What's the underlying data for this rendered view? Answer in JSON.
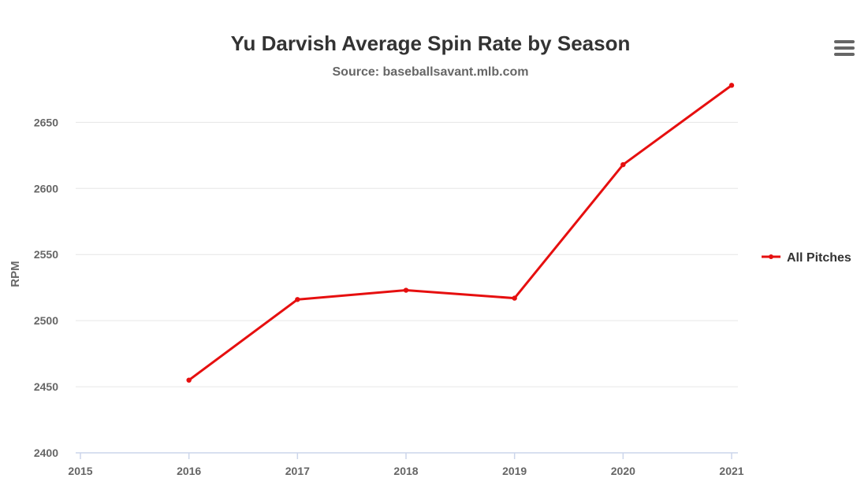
{
  "chart_data": {
    "type": "line",
    "title": "Yu Darvish Average Spin Rate by Season",
    "subtitle": "Source: baseballsavant.mlb.com",
    "xlabel": "",
    "ylabel": "RPM",
    "x": [
      2015,
      2016,
      2017,
      2018,
      2019,
      2020,
      2021
    ],
    "x_tick_labels": [
      "2015",
      "2016",
      "2017",
      "2018",
      "2019",
      "2020",
      "2021"
    ],
    "xlim": [
      2015,
      2021
    ],
    "ylim": [
      2400,
      2680
    ],
    "y_ticks": [
      2400,
      2450,
      2500,
      2550,
      2600,
      2650
    ],
    "y_tick_labels": [
      "2400",
      "2450",
      "2500",
      "2550",
      "2600",
      "2650"
    ],
    "grid": true,
    "legend_position": "right",
    "series": [
      {
        "name": "All Pitches",
        "color": "#e60f0f",
        "points": [
          {
            "x": 2016,
            "y": 2455
          },
          {
            "x": 2017,
            "y": 2516
          },
          {
            "x": 2018,
            "y": 2523
          },
          {
            "x": 2019,
            "y": 2517
          },
          {
            "x": 2020,
            "y": 2618
          },
          {
            "x": 2021,
            "y": 2678
          }
        ]
      }
    ]
  },
  "menu": {
    "icon": "hamburger-menu-icon"
  },
  "colors": {
    "grid": "#e6e6e6",
    "axis": "#ccd6eb",
    "text": "#666666",
    "title": "#333333"
  }
}
